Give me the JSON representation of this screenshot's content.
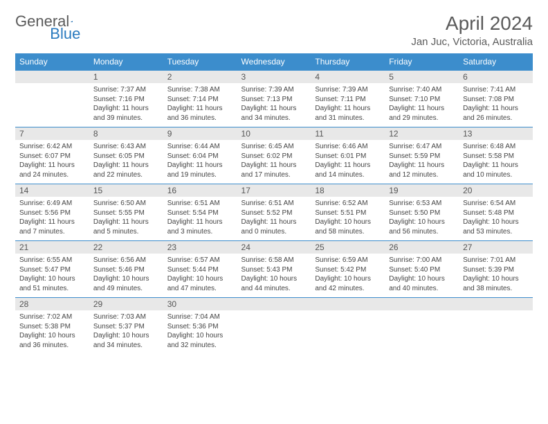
{
  "brand": {
    "text1": "General",
    "text2": "Blue"
  },
  "header": {
    "month": "April 2024",
    "location": "Jan Juc, Victoria, Australia"
  },
  "colors": {
    "header_bg": "#3c8dcc",
    "header_text": "#ffffff",
    "daynum_bg": "#e8e8e8",
    "border": "#3c8dcc",
    "text": "#444444",
    "title": "#5a5a5a"
  },
  "weekdays": [
    "Sunday",
    "Monday",
    "Tuesday",
    "Wednesday",
    "Thursday",
    "Friday",
    "Saturday"
  ],
  "weeks": [
    [
      {
        "num": "",
        "lines": []
      },
      {
        "num": "1",
        "lines": [
          "Sunrise: 7:37 AM",
          "Sunset: 7:16 PM",
          "Daylight: 11 hours and 39 minutes."
        ]
      },
      {
        "num": "2",
        "lines": [
          "Sunrise: 7:38 AM",
          "Sunset: 7:14 PM",
          "Daylight: 11 hours and 36 minutes."
        ]
      },
      {
        "num": "3",
        "lines": [
          "Sunrise: 7:39 AM",
          "Sunset: 7:13 PM",
          "Daylight: 11 hours and 34 minutes."
        ]
      },
      {
        "num": "4",
        "lines": [
          "Sunrise: 7:39 AM",
          "Sunset: 7:11 PM",
          "Daylight: 11 hours and 31 minutes."
        ]
      },
      {
        "num": "5",
        "lines": [
          "Sunrise: 7:40 AM",
          "Sunset: 7:10 PM",
          "Daylight: 11 hours and 29 minutes."
        ]
      },
      {
        "num": "6",
        "lines": [
          "Sunrise: 7:41 AM",
          "Sunset: 7:08 PM",
          "Daylight: 11 hours and 26 minutes."
        ]
      }
    ],
    [
      {
        "num": "7",
        "lines": [
          "Sunrise: 6:42 AM",
          "Sunset: 6:07 PM",
          "Daylight: 11 hours and 24 minutes."
        ]
      },
      {
        "num": "8",
        "lines": [
          "Sunrise: 6:43 AM",
          "Sunset: 6:05 PM",
          "Daylight: 11 hours and 22 minutes."
        ]
      },
      {
        "num": "9",
        "lines": [
          "Sunrise: 6:44 AM",
          "Sunset: 6:04 PM",
          "Daylight: 11 hours and 19 minutes."
        ]
      },
      {
        "num": "10",
        "lines": [
          "Sunrise: 6:45 AM",
          "Sunset: 6:02 PM",
          "Daylight: 11 hours and 17 minutes."
        ]
      },
      {
        "num": "11",
        "lines": [
          "Sunrise: 6:46 AM",
          "Sunset: 6:01 PM",
          "Daylight: 11 hours and 14 minutes."
        ]
      },
      {
        "num": "12",
        "lines": [
          "Sunrise: 6:47 AM",
          "Sunset: 5:59 PM",
          "Daylight: 11 hours and 12 minutes."
        ]
      },
      {
        "num": "13",
        "lines": [
          "Sunrise: 6:48 AM",
          "Sunset: 5:58 PM",
          "Daylight: 11 hours and 10 minutes."
        ]
      }
    ],
    [
      {
        "num": "14",
        "lines": [
          "Sunrise: 6:49 AM",
          "Sunset: 5:56 PM",
          "Daylight: 11 hours and 7 minutes."
        ]
      },
      {
        "num": "15",
        "lines": [
          "Sunrise: 6:50 AM",
          "Sunset: 5:55 PM",
          "Daylight: 11 hours and 5 minutes."
        ]
      },
      {
        "num": "16",
        "lines": [
          "Sunrise: 6:51 AM",
          "Sunset: 5:54 PM",
          "Daylight: 11 hours and 3 minutes."
        ]
      },
      {
        "num": "17",
        "lines": [
          "Sunrise: 6:51 AM",
          "Sunset: 5:52 PM",
          "Daylight: 11 hours and 0 minutes."
        ]
      },
      {
        "num": "18",
        "lines": [
          "Sunrise: 6:52 AM",
          "Sunset: 5:51 PM",
          "Daylight: 10 hours and 58 minutes."
        ]
      },
      {
        "num": "19",
        "lines": [
          "Sunrise: 6:53 AM",
          "Sunset: 5:50 PM",
          "Daylight: 10 hours and 56 minutes."
        ]
      },
      {
        "num": "20",
        "lines": [
          "Sunrise: 6:54 AM",
          "Sunset: 5:48 PM",
          "Daylight: 10 hours and 53 minutes."
        ]
      }
    ],
    [
      {
        "num": "21",
        "lines": [
          "Sunrise: 6:55 AM",
          "Sunset: 5:47 PM",
          "Daylight: 10 hours and 51 minutes."
        ]
      },
      {
        "num": "22",
        "lines": [
          "Sunrise: 6:56 AM",
          "Sunset: 5:46 PM",
          "Daylight: 10 hours and 49 minutes."
        ]
      },
      {
        "num": "23",
        "lines": [
          "Sunrise: 6:57 AM",
          "Sunset: 5:44 PM",
          "Daylight: 10 hours and 47 minutes."
        ]
      },
      {
        "num": "24",
        "lines": [
          "Sunrise: 6:58 AM",
          "Sunset: 5:43 PM",
          "Daylight: 10 hours and 44 minutes."
        ]
      },
      {
        "num": "25",
        "lines": [
          "Sunrise: 6:59 AM",
          "Sunset: 5:42 PM",
          "Daylight: 10 hours and 42 minutes."
        ]
      },
      {
        "num": "26",
        "lines": [
          "Sunrise: 7:00 AM",
          "Sunset: 5:40 PM",
          "Daylight: 10 hours and 40 minutes."
        ]
      },
      {
        "num": "27",
        "lines": [
          "Sunrise: 7:01 AM",
          "Sunset: 5:39 PM",
          "Daylight: 10 hours and 38 minutes."
        ]
      }
    ],
    [
      {
        "num": "28",
        "lines": [
          "Sunrise: 7:02 AM",
          "Sunset: 5:38 PM",
          "Daylight: 10 hours and 36 minutes."
        ]
      },
      {
        "num": "29",
        "lines": [
          "Sunrise: 7:03 AM",
          "Sunset: 5:37 PM",
          "Daylight: 10 hours and 34 minutes."
        ]
      },
      {
        "num": "30",
        "lines": [
          "Sunrise: 7:04 AM",
          "Sunset: 5:36 PM",
          "Daylight: 10 hours and 32 minutes."
        ]
      },
      {
        "num": "",
        "lines": []
      },
      {
        "num": "",
        "lines": []
      },
      {
        "num": "",
        "lines": []
      },
      {
        "num": "",
        "lines": []
      }
    ]
  ]
}
